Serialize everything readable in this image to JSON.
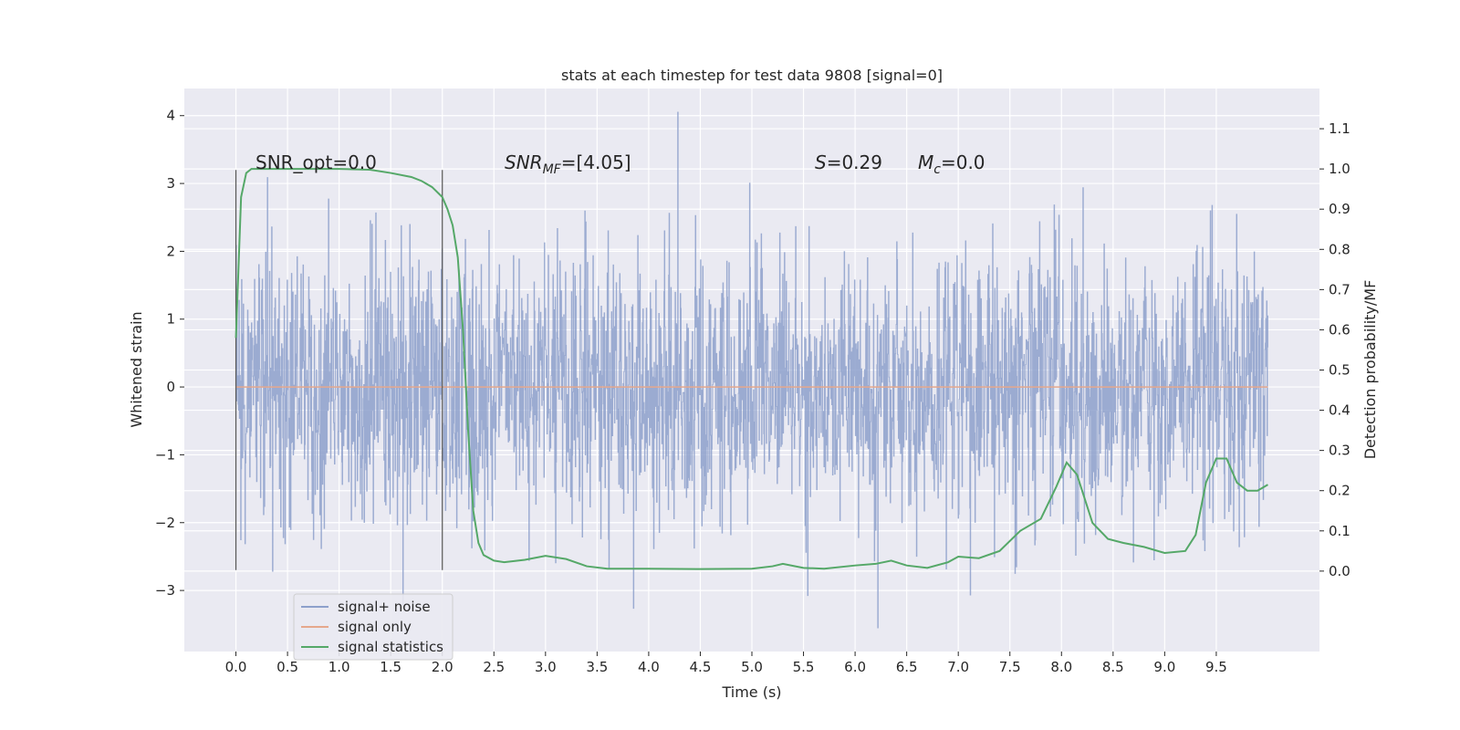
{
  "chart_data": {
    "type": "line",
    "title": "stats at each timestep for test data 9808 [signal=0]",
    "xlabel": "Time (s)",
    "ylabel": "Whitened strain",
    "y2label": "Detection probability/MF",
    "xlim": [
      -0.5,
      10.5
    ],
    "ylim": [
      -3.9,
      4.4
    ],
    "y2lim": [
      -0.2,
      1.2
    ],
    "xticks": [
      0.0,
      0.5,
      1.0,
      1.5,
      2.0,
      2.5,
      3.0,
      3.5,
      4.0,
      4.5,
      5.0,
      5.5,
      6.0,
      6.5,
      7.0,
      7.5,
      8.0,
      8.5,
      9.0,
      9.5
    ],
    "xtick_labels": [
      "0.0",
      "0.5",
      "1.0",
      "1.5",
      "2.0",
      "2.5",
      "3.0",
      "3.5",
      "4.0",
      "4.5",
      "5.0",
      "5.5",
      "6.0",
      "6.5",
      "7.0",
      "7.5",
      "8.0",
      "8.5",
      "9.0",
      "9.5"
    ],
    "yticks": [
      4,
      3,
      2,
      1,
      0,
      -1,
      -2,
      -3
    ],
    "ytick_labels": [
      "4",
      "3",
      "2",
      "1",
      "0",
      "−1",
      "−2",
      "−3"
    ],
    "y2ticks": [
      1.1,
      1.0,
      0.9,
      0.8,
      0.7,
      0.6,
      0.5,
      0.4,
      0.3,
      0.2,
      0.1,
      0.0
    ],
    "y2tick_labels": [
      "1.1",
      "1.0",
      "0.9",
      "0.8",
      "0.7",
      "0.6",
      "0.5",
      "0.4",
      "0.3",
      "0.2",
      "0.1",
      "0.0"
    ],
    "grid": true,
    "legend_position": "lower-left",
    "annotations": {
      "snr_opt": "SNR_opt=0.0",
      "snr_mf_prefix": "SNR",
      "snr_mf_sub": "MF",
      "snr_mf_suffix": "=[4.05]",
      "s_prefix": "S",
      "s_suffix": "=0.29",
      "mc_prefix": "M",
      "mc_sub": "c",
      "mc_suffix": "=0.0"
    },
    "vertical_markers": [
      {
        "x": 0.0,
        "y_range": [
          -2.7,
          3.2
        ]
      },
      {
        "x": 2.0,
        "y_range": [
          -2.7,
          3.2
        ]
      }
    ],
    "series": [
      {
        "name": "signal+ noise",
        "color": "#8da0cb",
        "axis": "left",
        "x_range": [
          0.0,
          10.0
        ],
        "typical_envelope": [
          -1.5,
          1.5
        ],
        "peak_max": 4.05,
        "peak_min": -3.55
      },
      {
        "name": "signal only",
        "color": "#e5a88c",
        "axis": "left",
        "x": [
          0.0,
          10.0
        ],
        "y": [
          0.0,
          0.0
        ]
      },
      {
        "name": "signal statistics",
        "color": "#55a868",
        "axis": "right",
        "x": [
          0.0,
          0.05,
          0.1,
          0.15,
          0.2,
          0.3,
          0.5,
          1.0,
          1.3,
          1.5,
          1.7,
          1.8,
          1.9,
          2.0,
          2.05,
          2.1,
          2.15,
          2.2,
          2.25,
          2.3,
          2.35,
          2.4,
          2.5,
          2.6,
          2.8,
          3.0,
          3.2,
          3.4,
          3.6,
          4.0,
          4.5,
          5.0,
          5.2,
          5.3,
          5.5,
          5.7,
          6.0,
          6.2,
          6.35,
          6.5,
          6.7,
          6.9,
          7.0,
          7.2,
          7.4,
          7.6,
          7.8,
          7.95,
          8.05,
          8.15,
          8.3,
          8.45,
          8.6,
          8.8,
          9.0,
          9.2,
          9.3,
          9.4,
          9.5,
          9.6,
          9.7,
          9.8,
          9.9,
          10.0
        ],
        "y": [
          0.58,
          0.93,
          0.99,
          1.0,
          1.0,
          1.0,
          1.0,
          1.0,
          0.998,
          0.99,
          0.98,
          0.97,
          0.955,
          0.93,
          0.9,
          0.86,
          0.78,
          0.6,
          0.35,
          0.15,
          0.07,
          0.04,
          0.026,
          0.022,
          0.028,
          0.038,
          0.03,
          0.012,
          0.006,
          0.006,
          0.005,
          0.006,
          0.012,
          0.018,
          0.008,
          0.006,
          0.014,
          0.018,
          0.026,
          0.014,
          0.008,
          0.022,
          0.036,
          0.032,
          0.05,
          0.1,
          0.13,
          0.21,
          0.27,
          0.24,
          0.12,
          0.08,
          0.07,
          0.06,
          0.045,
          0.05,
          0.09,
          0.22,
          0.28,
          0.28,
          0.22,
          0.2,
          0.2,
          0.215
        ]
      }
    ]
  }
}
